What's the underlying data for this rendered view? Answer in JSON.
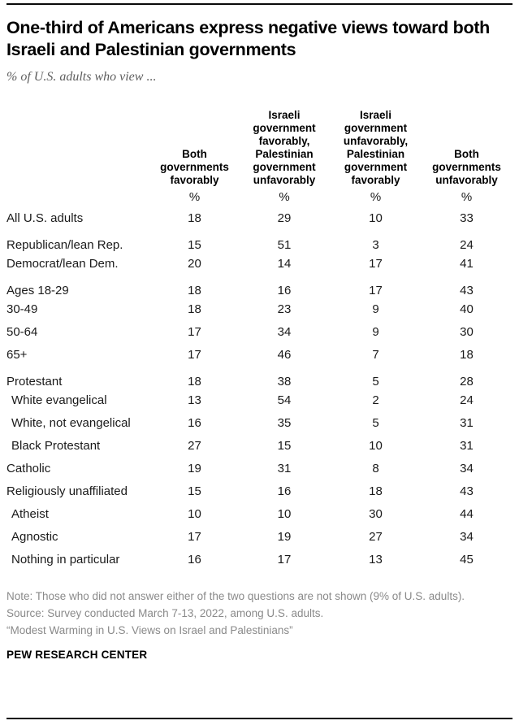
{
  "header": {
    "title": "One-third of Americans express negative views toward both Israeli and Palestinian governments",
    "subtitle": "% of U.S. adults who view ..."
  },
  "chart_data": {
    "type": "table",
    "title": "One-third of Americans express negative views toward both Israeli and Palestinian governments",
    "subtitle": "% of U.S. adults who view ...",
    "unit": "%",
    "columns": [
      "Both governments favorably",
      "Israeli government favorably, Palestinian government unfavorably",
      "Israeli government unfavorably, Palestinian government favorably",
      "Both governments unfavorably"
    ],
    "rows": [
      {
        "label": "All U.S. adults",
        "values": [
          18,
          29,
          10,
          33
        ],
        "group_start": false,
        "indent": false
      },
      {
        "label": "Republican/lean Rep.",
        "values": [
          15,
          51,
          3,
          24
        ],
        "group_start": true,
        "indent": false
      },
      {
        "label": "Democrat/lean Dem.",
        "values": [
          20,
          14,
          17,
          41
        ],
        "group_start": false,
        "indent": false
      },
      {
        "label": "Ages 18-29",
        "values": [
          18,
          16,
          17,
          43
        ],
        "group_start": true,
        "indent": false
      },
      {
        "label": "30-49",
        "values": [
          18,
          23,
          9,
          40
        ],
        "group_start": false,
        "indent": false
      },
      {
        "label": "50-64",
        "values": [
          17,
          34,
          9,
          30
        ],
        "group_start": false,
        "indent": false
      },
      {
        "label": "65+",
        "values": [
          17,
          46,
          7,
          18
        ],
        "group_start": false,
        "indent": false
      },
      {
        "label": "Protestant",
        "values": [
          18,
          38,
          5,
          28
        ],
        "group_start": true,
        "indent": false
      },
      {
        "label": "White evangelical",
        "values": [
          13,
          54,
          2,
          24
        ],
        "group_start": false,
        "indent": true
      },
      {
        "label": "White, not evangelical",
        "values": [
          16,
          35,
          5,
          31
        ],
        "group_start": false,
        "indent": true
      },
      {
        "label": "Black Protestant",
        "values": [
          27,
          15,
          10,
          31
        ],
        "group_start": false,
        "indent": true
      },
      {
        "label": "Catholic",
        "values": [
          19,
          31,
          8,
          34
        ],
        "group_start": false,
        "indent": false
      },
      {
        "label": "Religiously unaffiliated",
        "values": [
          15,
          16,
          18,
          43
        ],
        "group_start": false,
        "indent": false
      },
      {
        "label": "Atheist",
        "values": [
          10,
          10,
          30,
          44
        ],
        "group_start": false,
        "indent": true
      },
      {
        "label": "Agnostic",
        "values": [
          17,
          19,
          27,
          34
        ],
        "group_start": false,
        "indent": true
      },
      {
        "label": "Nothing in particular",
        "values": [
          16,
          17,
          13,
          45
        ],
        "group_start": false,
        "indent": true
      }
    ]
  },
  "footer": {
    "note": "Note: Those who did not answer either of the two questions are not shown (9% of U.S. adults).",
    "source": "Source: Survey conducted March 7-13, 2022, among U.S. adults.",
    "report_title": "“Modest Warming in U.S. Views on Israel and Palestinians”",
    "brand": "PEW RESEARCH CENTER"
  },
  "colors": {
    "text": "#1a1a1a",
    "muted_gray": "#8a8a8a",
    "subtitle_gray": "#5f5f5f",
    "rule": "#0a0a0a"
  }
}
